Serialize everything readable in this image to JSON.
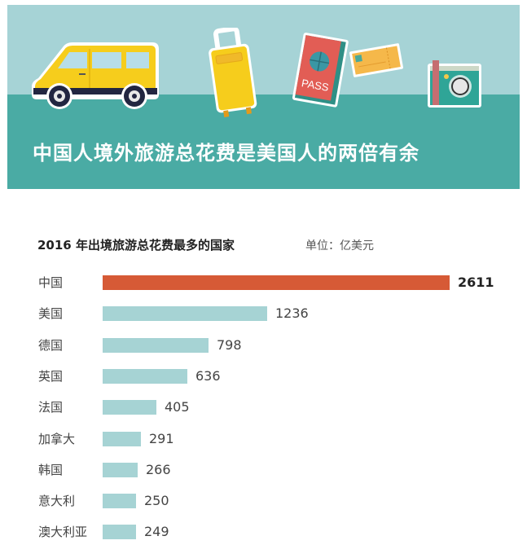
{
  "banner": {
    "headline": "中国人境外旅游总花费是美国人的两倍有余",
    "passport_text": "PASS",
    "colors": {
      "sky": "#a6d3d6",
      "ground": "#4aaba4"
    }
  },
  "chart_data": {
    "type": "bar",
    "orientation": "horizontal",
    "title": "2016 年出境旅游总花费最多的国家",
    "unit": "单位：亿美元",
    "categories": [
      "中国",
      "美国",
      "德国",
      "英国",
      "法国",
      "加拿大",
      "韩国",
      "意大利",
      "澳大利亚"
    ],
    "values": [
      2611,
      1236,
      798,
      636,
      405,
      291,
      266,
      250,
      249
    ],
    "value_labels": [
      "2611",
      "1236",
      "798",
      "636",
      "405",
      "291",
      "266",
      "250",
      "249"
    ],
    "highlight_index": 0,
    "colors": {
      "highlight": "#d65a36",
      "default": "#a6d3d4"
    },
    "xlabel": "",
    "ylabel": "",
    "grid": false,
    "legend": false
  }
}
